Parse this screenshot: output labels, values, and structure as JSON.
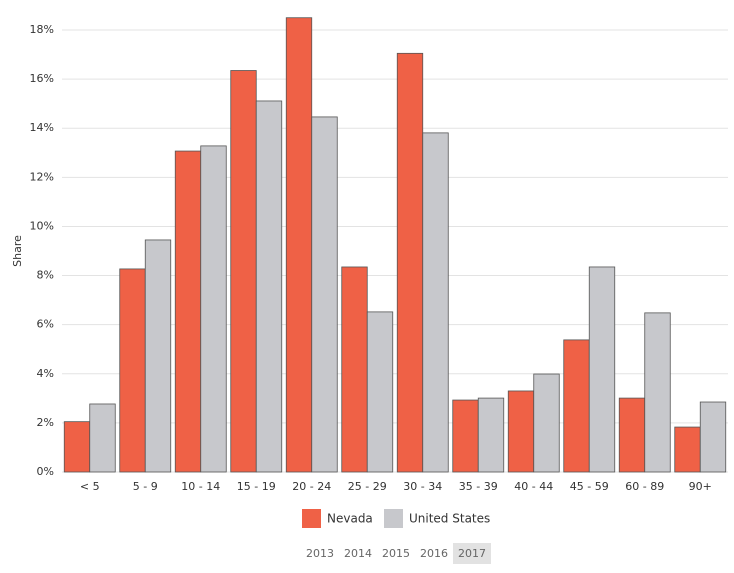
{
  "chart_data": {
    "type": "bar",
    "y_label": "Share",
    "categories": [
      "< 5",
      "5 - 9",
      "10 - 14",
      "15 - 19",
      "20 - 24",
      "25 - 29",
      "30 - 34",
      "35 - 39",
      "40 - 44",
      "45 - 59",
      "60 - 89",
      "90+"
    ],
    "series": [
      {
        "name": "Nevada",
        "color": "#ef6146",
        "values": [
          2.05,
          8.27,
          13.07,
          16.35,
          18.5,
          8.35,
          17.05,
          2.93,
          3.3,
          5.38,
          3.01,
          1.83
        ]
      },
      {
        "name": "United States",
        "color": "#c7c8cc",
        "values": [
          2.77,
          9.45,
          13.28,
          15.11,
          14.46,
          6.52,
          13.81,
          3.01,
          3.99,
          8.35,
          6.48,
          2.85
        ]
      }
    ],
    "ylim": [
      0,
      18
    ],
    "yticks": [
      {
        "value": 0,
        "label": "0%"
      },
      {
        "value": 2,
        "label": "2%"
      },
      {
        "value": 4,
        "label": "4%"
      },
      {
        "value": 6,
        "label": "6%"
      },
      {
        "value": 8,
        "label": "8%"
      },
      {
        "value": 10,
        "label": "10%"
      },
      {
        "value": 12,
        "label": "12%"
      },
      {
        "value": 14,
        "label": "14%"
      },
      {
        "value": 16,
        "label": "16%"
      },
      {
        "value": 18,
        "label": "18%"
      }
    ],
    "grid": true
  },
  "year_selector": {
    "options": [
      "2013",
      "2014",
      "2015",
      "2016",
      "2017"
    ],
    "selected": "2017"
  }
}
